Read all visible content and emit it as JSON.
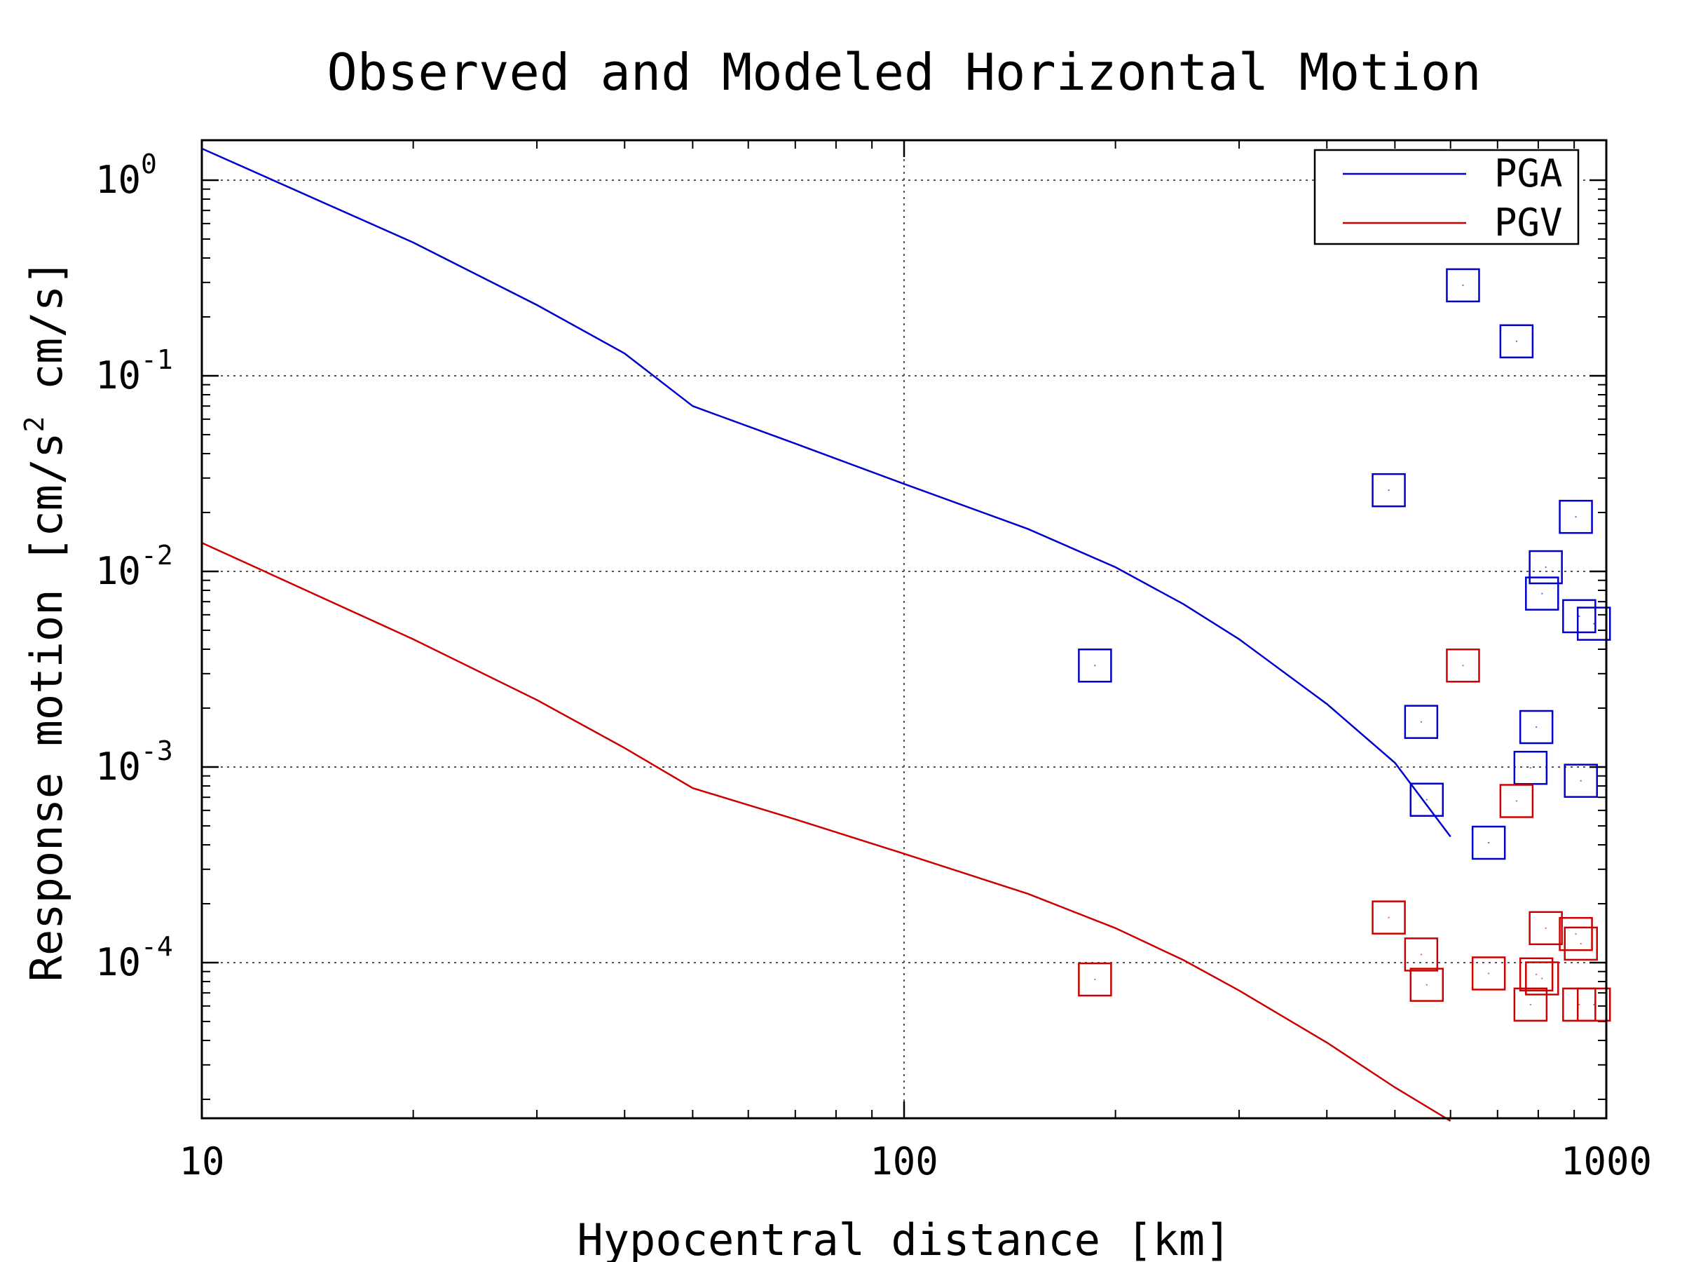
{
  "chart_data": {
    "type": "scatter",
    "title": "Observed and Modeled Horizontal Motion",
    "xlabel": "Hypocentral distance [km]",
    "ylabel": "Response motion  [cm/s",
    "ylabel_sup": "2",
    "ylabel_tail": "  cm/s]",
    "x_scale": "log",
    "y_scale": "log",
    "xlim": [
      10,
      1000
    ],
    "ylim": [
      1.6e-05,
      1.6
    ],
    "x_ticks": [
      {
        "value": 10,
        "label": "10"
      },
      {
        "value": 100,
        "label": "100"
      },
      {
        "value": 1000,
        "label": "1000"
      }
    ],
    "y_ticks": [
      {
        "value": 1,
        "base": "10",
        "exp": "0"
      },
      {
        "value": 0.1,
        "base": "10",
        "exp": "-1"
      },
      {
        "value": 0.01,
        "base": "10",
        "exp": "-2"
      },
      {
        "value": 0.001,
        "base": "10",
        "exp": "-3"
      },
      {
        "value": 0.0001,
        "base": "10",
        "exp": "-4"
      }
    ],
    "grid": true,
    "legend_position": "top-right",
    "series": [
      {
        "name": "PGA",
        "color": "#0000cc",
        "model": [
          [
            10,
            1.45
          ],
          [
            20,
            0.48
          ],
          [
            30,
            0.23
          ],
          [
            40,
            0.13
          ],
          [
            50,
            0.07
          ],
          [
            70,
            0.045
          ],
          [
            100,
            0.028
          ],
          [
            150,
            0.0165
          ],
          [
            200,
            0.0105
          ],
          [
            250,
            0.0068
          ],
          [
            300,
            0.0045
          ],
          [
            400,
            0.0021
          ],
          [
            500,
            0.00105
          ],
          [
            600,
            0.00044
          ]
        ],
        "observed": [
          [
            187,
            0.0033
          ],
          [
            490,
            0.026
          ],
          [
            545,
            0.0017
          ],
          [
            555,
            0.00068
          ],
          [
            625,
            0.29
          ],
          [
            680,
            0.00041
          ],
          [
            745,
            0.15
          ],
          [
            780,
            0.00099
          ],
          [
            795,
            0.0016
          ],
          [
            810,
            0.0077
          ],
          [
            820,
            0.0105
          ],
          [
            905,
            0.019
          ],
          [
            915,
            0.0059
          ],
          [
            920,
            0.00085
          ],
          [
            960,
            0.0054
          ]
        ]
      },
      {
        "name": "PGV",
        "color": "#cc0000",
        "model": [
          [
            10,
            0.014
          ],
          [
            20,
            0.0045
          ],
          [
            30,
            0.0022
          ],
          [
            40,
            0.00125
          ],
          [
            50,
            0.00078
          ],
          [
            70,
            0.00054
          ],
          [
            100,
            0.00036
          ],
          [
            150,
            0.000225
          ],
          [
            200,
            0.00015
          ],
          [
            250,
            0.000103
          ],
          [
            300,
            7.2e-05
          ],
          [
            400,
            3.9e-05
          ],
          [
            500,
            2.3e-05
          ],
          [
            600,
            1.55e-05
          ]
        ],
        "observed": [
          [
            187,
            8.2e-05
          ],
          [
            490,
            0.00017
          ],
          [
            545,
            0.00011
          ],
          [
            555,
            7.7e-05
          ],
          [
            625,
            0.0033
          ],
          [
            680,
            8.8e-05
          ],
          [
            745,
            0.00067
          ],
          [
            780,
            6.1e-05
          ],
          [
            795,
            8.7e-05
          ],
          [
            810,
            8.3e-05
          ],
          [
            820,
            0.00015
          ],
          [
            905,
            0.00014
          ],
          [
            915,
            6.1e-05
          ],
          [
            920,
            0.000125
          ],
          [
            960,
            6.1e-05
          ]
        ]
      }
    ]
  }
}
